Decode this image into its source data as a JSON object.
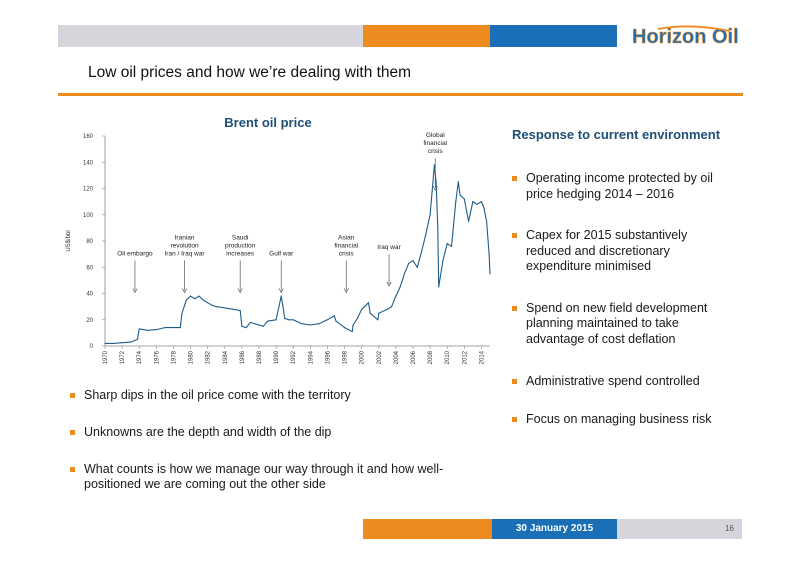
{
  "header": {
    "logo_text": "Horizon Oil",
    "colors": {
      "grey": "#d4d6dc",
      "orange": "#ee8b1f",
      "blue": "#1a6fb6"
    }
  },
  "title": "Low oil prices and how we’re dealing with them",
  "chart_data": {
    "type": "line",
    "title": "Brent oil price",
    "ylabel": "US$/bbl",
    "xlabel": "",
    "ylim": [
      0,
      160
    ],
    "xlim": [
      1970,
      2015
    ],
    "yticks": [
      "0",
      "20",
      "40",
      "60",
      "80",
      "100",
      "120",
      "140",
      "160"
    ],
    "xticks": [
      "1970",
      "1972",
      "1974",
      "1976",
      "1978",
      "1980",
      "1982",
      "1984",
      "1986",
      "1988",
      "1990",
      "1992",
      "1994",
      "1996",
      "1998",
      "2000",
      "2002",
      "2004",
      "2006",
      "2008",
      "2010",
      "2012",
      "2014"
    ],
    "grid": false,
    "line_color": "#1f5d8a",
    "series": [
      {
        "x": [
          1970,
          1971,
          1972,
          1973,
          1973.8,
          1974,
          1975,
          1976,
          1977,
          1978,
          1978.8,
          1979,
          1979.5,
          1980,
          1980.5,
          1981,
          1981.5,
          1982,
          1982.5,
          1983,
          1984,
          1985,
          1985.8,
          1986,
          1986.5,
          1987,
          1988,
          1988.5,
          1989,
          1990,
          1990.6,
          1990.8,
          1991,
          1991.5,
          1992,
          1993,
          1994,
          1995,
          1996,
          1996.8,
          1997,
          1998,
          1998.9,
          1999,
          1999.5,
          2000,
          2000.8,
          2001,
          2001.9,
          2002,
          2003,
          2003.5,
          2004,
          2004.5,
          2005,
          2005.5,
          2006,
          2006.5,
          2007,
          2007.5,
          2008,
          2008.5,
          2008.7,
          2008.9,
          2009,
          2009.5,
          2010,
          2010.5,
          2011,
          2011.3,
          2011.5,
          2012,
          2012.5,
          2013,
          2013.5,
          2014,
          2014.3,
          2014.6,
          2014.9,
          2015
        ],
        "y": [
          2,
          2,
          2.5,
          3,
          5,
          13,
          12,
          12.5,
          14,
          14,
          14,
          25,
          35,
          38,
          36,
          38,
          35,
          33,
          31,
          30,
          29,
          28,
          27,
          15,
          14,
          18,
          16,
          15,
          19,
          20,
          38,
          30,
          21,
          20,
          20,
          17,
          16,
          17,
          20,
          23,
          19,
          14,
          11,
          16,
          21,
          28,
          33,
          25,
          20,
          25,
          28,
          30,
          38,
          45,
          55,
          63,
          65,
          60,
          72,
          85,
          100,
          138,
          125,
          90,
          45,
          65,
          78,
          76,
          110,
          125,
          115,
          112,
          95,
          110,
          108,
          110,
          105,
          95,
          70,
          55
        ]
      }
    ],
    "annotations": [
      {
        "lines": [
          "Oil embargo"
        ],
        "x": 1973.5,
        "y": 40
      },
      {
        "lines": [
          "Iranian",
          "revolution",
          "Iran / Iraq war"
        ],
        "x": 1979.3,
        "y": 40
      },
      {
        "lines": [
          "Saudi",
          "production",
          "increases"
        ],
        "x": 1985.8,
        "y": 40
      },
      {
        "lines": [
          "Gulf war"
        ],
        "x": 1990.6,
        "y": 40
      },
      {
        "lines": [
          "Asian",
          "financial",
          "crisis"
        ],
        "x": 1998.2,
        "y": 40
      },
      {
        "lines": [
          "Iraq war"
        ],
        "x": 2003.2,
        "y": 45
      },
      {
        "lines": [
          "Global",
          "financial",
          "crisis"
        ],
        "x": 2008.6,
        "y": 118
      }
    ]
  },
  "left_bullets": [
    "Sharp dips in the oil price come with the territory",
    "Unknowns are the depth and width of the dip",
    "What counts is how we manage our way through it and how well-positioned we are coming out the other side"
  ],
  "right": {
    "heading": "Response to current environment",
    "bullets": [
      "Operating income protected by oil price hedging 2014 – 2016",
      "Capex for 2015 substantively reduced and discretionary expenditure minimised",
      "Spend on new field development planning maintained to take advantage of cost deflation",
      "Administrative spend controlled",
      "Focus on managing business risk"
    ]
  },
  "footer": {
    "date": "30 January 2015",
    "page": "16",
    "colors": {
      "orange": "#ee8b1f",
      "blue": "#1a6fb6",
      "grey": "#d4d6dc"
    }
  }
}
